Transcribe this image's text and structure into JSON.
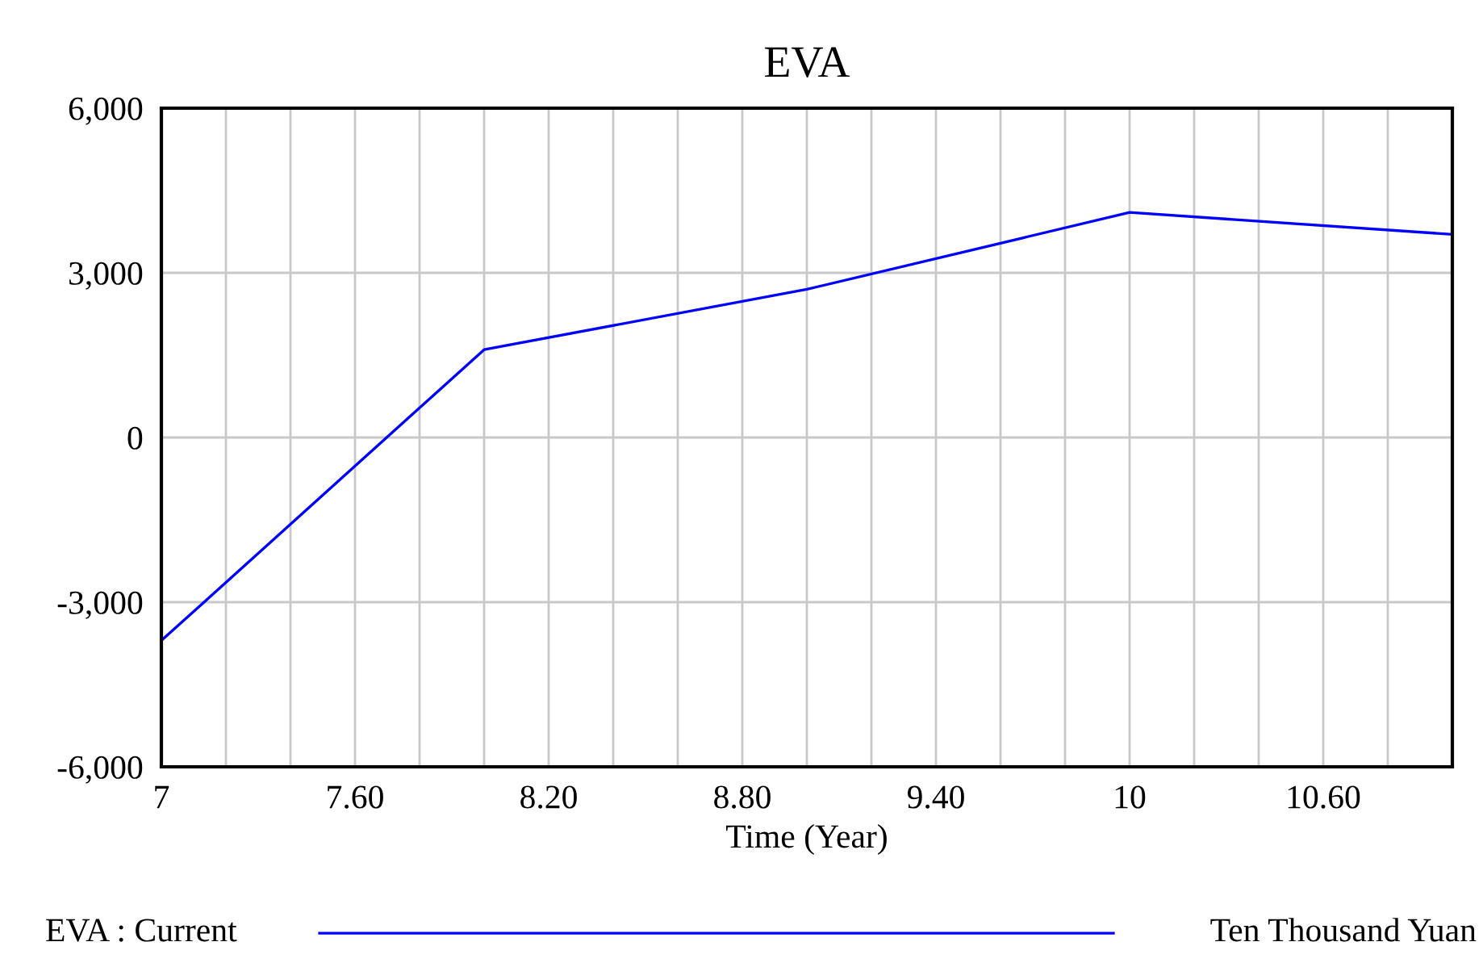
{
  "chart_data": {
    "type": "line",
    "title": "EVA",
    "xlabel": "Time (Year)",
    "x": [
      7,
      8,
      9,
      10,
      11
    ],
    "series": [
      {
        "name": "EVA : Current",
        "color": "#0000ff",
        "values": [
          -3700,
          1600,
          2700,
          4100,
          3700
        ]
      }
    ],
    "xlim": [
      7,
      11
    ],
    "xticks": [
      7,
      {
        "value": 7.2,
        "label": null
      },
      {
        "value": 7.4,
        "label": null
      },
      {
        "value": 7.6,
        "label": "7.60"
      },
      {
        "value": 7.8,
        "label": null
      },
      {
        "value": 8.0,
        "label": null
      },
      {
        "value": 8.2,
        "label": "8.20"
      },
      {
        "value": 8.4,
        "label": null
      },
      {
        "value": 8.6,
        "label": null
      },
      {
        "value": 8.8,
        "label": "8.80"
      },
      {
        "value": 9.0,
        "label": null
      },
      {
        "value": 9.2,
        "label": null
      },
      {
        "value": 9.4,
        "label": "9.40"
      },
      {
        "value": 9.6,
        "label": null
      },
      {
        "value": 9.8,
        "label": null
      },
      10,
      {
        "value": 10.2,
        "label": null
      },
      {
        "value": 10.4,
        "label": null
      },
      {
        "value": 10.6,
        "label": "10.60"
      },
      {
        "value": 10.8,
        "label": null
      }
    ],
    "ylim": [
      -6000,
      6000
    ],
    "yticks": [
      {
        "value": -6000,
        "label": "-6,000"
      },
      {
        "value": -3000,
        "label": "-3,000"
      },
      0,
      {
        "value": 3000,
        "label": "3,000"
      },
      {
        "value": 6000,
        "label": "6,000"
      }
    ],
    "grid": true,
    "legend": "bottom",
    "marker": "none",
    "line_style": "solid",
    "annotations": [
      "Ten Thousand Yuan"
    ]
  }
}
